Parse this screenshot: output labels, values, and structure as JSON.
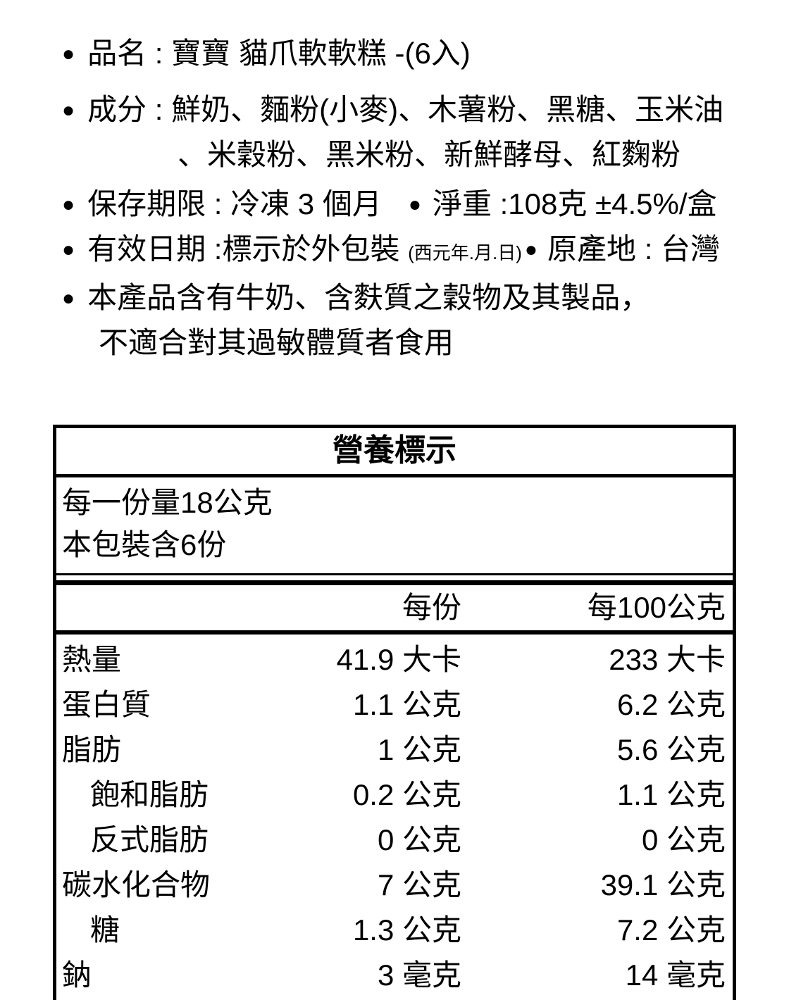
{
  "colors": {
    "background": "#ffffff",
    "text": "#000000",
    "table_border": "#000000"
  },
  "bullets": {
    "glyph": "●"
  },
  "product": {
    "name": "品名 : 寶寶 貓爪軟軟糕 -(6入)",
    "ingredients_line1": "成分 : 鮮奶、麵粉(小麥)、木薯粉、黑糖、玉米油",
    "ingredients_line2": "、米穀粉、黑米粉、新鮮酵母、紅麴粉",
    "shelf_life": "保存期限 : 冷凍 3 個月",
    "net_weight": "淨重 :108克 ±4.5%/盒",
    "expiry": "有效日期 :標示於外包裝",
    "expiry_note": "(西元年.月.日)",
    "origin": "原產地 : 台灣",
    "allergen_line1": "本產品含有牛奶、含麩質之穀物及其製品，",
    "allergen_line2": "不適合對其過敏體質者食用"
  },
  "nutrition": {
    "title": "營養標示",
    "serving_size": "每一份量18公克",
    "servings_per_pack": "本包裝含6份",
    "col_per_serving": "每份",
    "col_per_100g": "每100公克",
    "rows": [
      {
        "label": "熱量",
        "per_serving": "41.9 大卡",
        "per_100g": "233 大卡"
      },
      {
        "label": "蛋白質",
        "per_serving": "1.1 公克",
        "per_100g": "6.2 公克"
      },
      {
        "label": "脂肪",
        "per_serving": "1 公克",
        "per_100g": "5.6 公克"
      },
      {
        "label": "飽和脂肪",
        "per_serving": "0.2 公克",
        "per_100g": "1.1 公克"
      },
      {
        "label": "反式脂肪",
        "per_serving": "0 公克",
        "per_100g": "0 公克"
      },
      {
        "label": "碳水化合物",
        "per_serving": "7 公克",
        "per_100g": "39.1 公克"
      },
      {
        "label": "糖",
        "per_serving": "1.3 公克",
        "per_100g": "7.2 公克"
      },
      {
        "label": "鈉",
        "per_serving": "3 毫克",
        "per_100g": "14 毫克"
      }
    ]
  }
}
